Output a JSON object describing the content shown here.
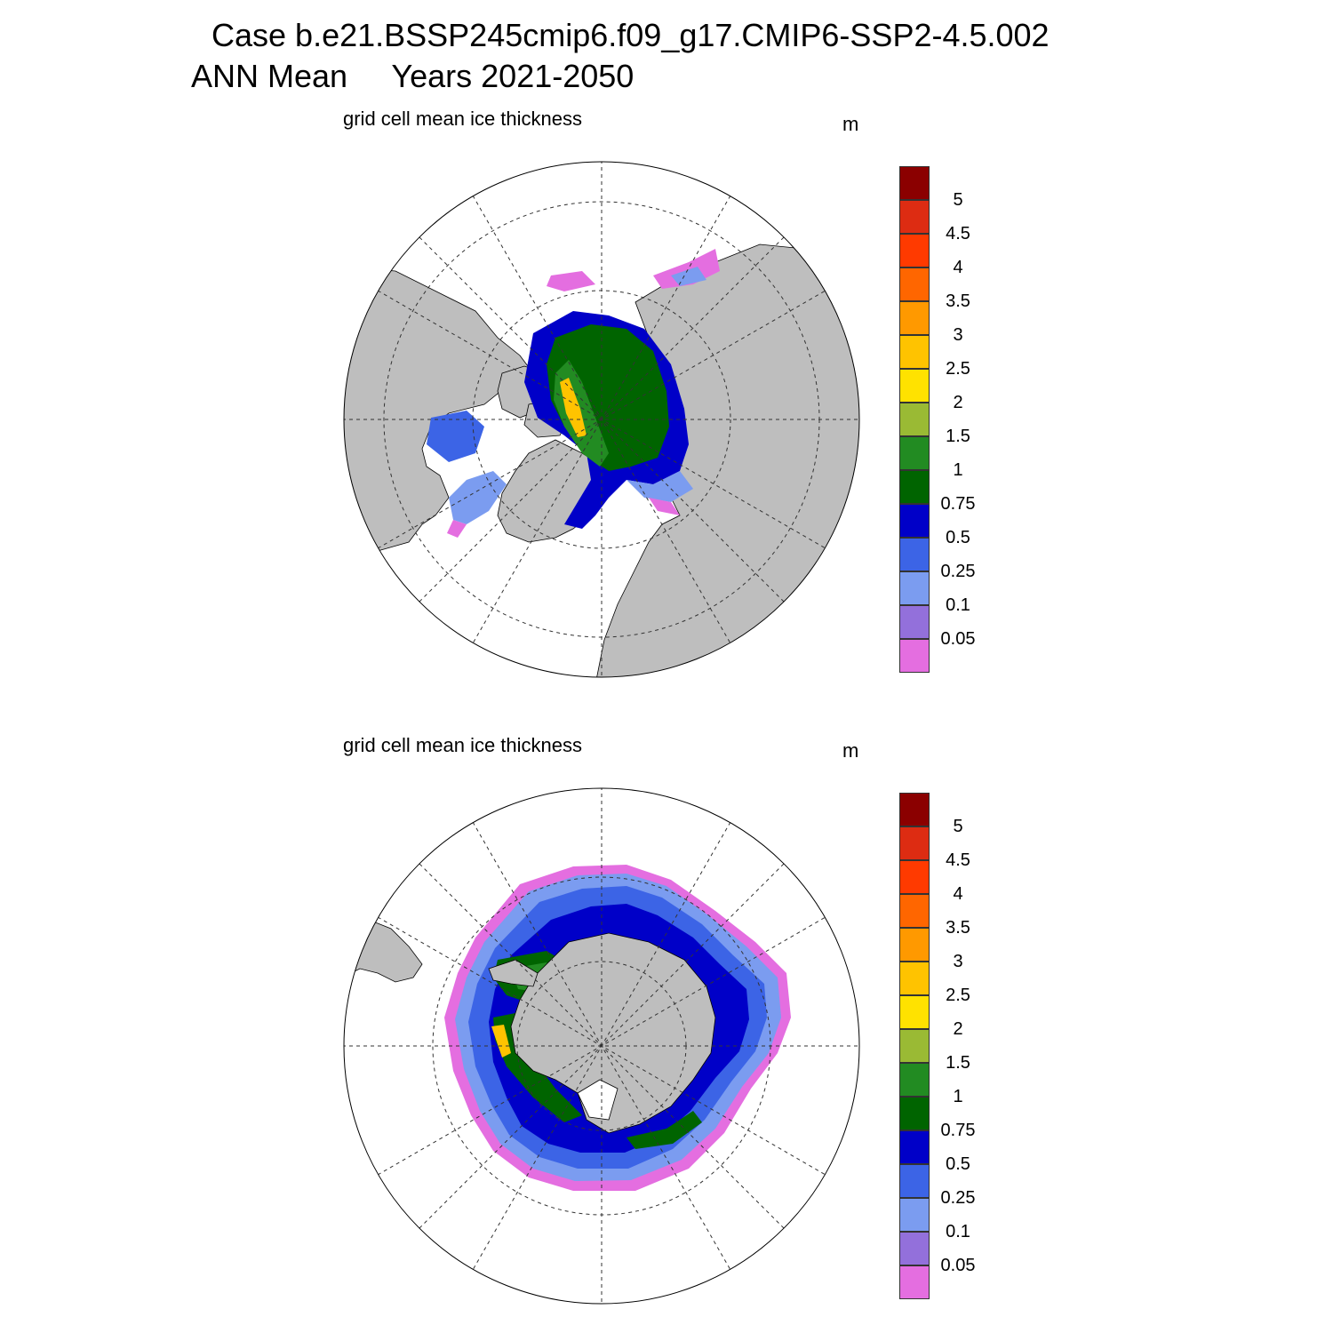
{
  "titles": {
    "case": "Case b.e21.BSSP245cmip6.f09_g17.CMIP6-SSP2-4.5.002",
    "period": "ANN Mean     Years 2021-2050"
  },
  "panels": [
    {
      "id": "north",
      "variable": "grid cell mean ice thickness",
      "units": "m"
    },
    {
      "id": "south",
      "variable": "grid cell mean ice thickness",
      "units": "m"
    }
  ],
  "colorbar": {
    "levels": [
      "5",
      "4.5",
      "4",
      "3.5",
      "3",
      "2.5",
      "2",
      "1.5",
      "1",
      "0.75",
      "0.5",
      "0.25",
      "0.1",
      "0.05"
    ],
    "colors": [
      "#8b0000",
      "#dd2c12",
      "#ff3a00",
      "#ff6600",
      "#ff9900",
      "#ffc300",
      "#ffe200",
      "#9aba34",
      "#228b22",
      "#006400",
      "#0000c8",
      "#3c64e6",
      "#7b9cf0",
      "#9370db",
      "#e46ee0"
    ]
  },
  "map_colors": {
    "land": "#bebebe",
    "ocean": "#ffffff"
  }
}
